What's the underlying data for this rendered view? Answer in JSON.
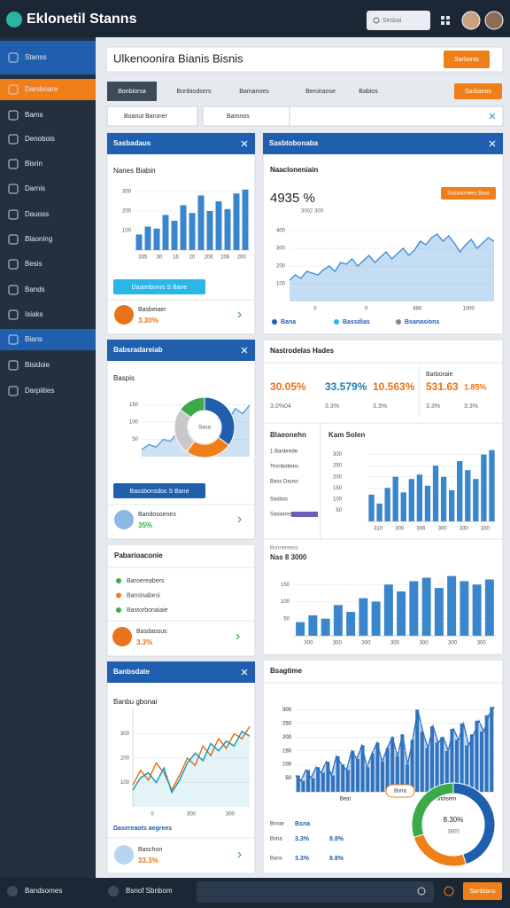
{
  "header": {
    "logo": "Eklonetil Stanns",
    "search": "Sesbai"
  },
  "sidebar": {
    "items": [
      "Stanss",
      "Darsboare",
      "Bams",
      "Denobois",
      "Bisrin",
      "Darnis",
      "Dauoss",
      "Blaoning",
      "Besis",
      "Bands",
      "Isiaks",
      "Bians",
      "Bisidoie",
      "Darpiities"
    ]
  },
  "title_bar": {
    "title": "Ulkenoonira  Bianis  Bisnis",
    "button": "Sarbonis"
  },
  "tabs": {
    "items": [
      "Bonbiorsa",
      "Bonbiodsers",
      "Bamanoes",
      "Beroiraose",
      "Babios"
    ],
    "button": "Sarbanos"
  },
  "filters": {
    "items": [
      "Boanut Baroner",
      "Bamnos"
    ]
  },
  "panel_sales": {
    "title": "Sasbadaus",
    "subtitle": "Nanes Biabin",
    "chart": {
      "type": "bar",
      "color": "#3a86cc",
      "values": [
        80,
        120,
        110,
        180,
        150,
        230,
        190,
        280,
        200,
        250,
        210,
        290,
        310
      ],
      "ylim": [
        0,
        350
      ],
      "yticks": [
        100,
        200,
        300
      ],
      "xlabels": [
        "335",
        "30",
        "16",
        "20",
        "206",
        "206",
        "200"
      ]
    },
    "button": "Dasenbonrs S Bane",
    "stat_label": "Basbeiaer",
    "stat_value": "3.30%"
  },
  "panel_trend": {
    "title": "Sasbtobonaba",
    "subtitle": "Naacloneniain",
    "big_value": "4935 %",
    "small_value": "3002  300",
    "tooltip": "Sasanonees Baar",
    "chart": {
      "type": "area",
      "color": "#3f8fd6",
      "values": [
        120,
        150,
        130,
        170,
        160,
        150,
        180,
        200,
        170,
        220,
        210,
        240,
        200,
        230,
        260,
        220,
        250,
        280,
        240,
        270,
        300,
        260,
        290,
        340,
        320,
        360,
        380,
        340,
        370,
        330,
        280,
        320,
        350,
        300,
        330,
        360,
        340
      ],
      "ylim": [
        0,
        500
      ],
      "yticks": [
        100,
        200,
        300,
        400
      ],
      "xlabels": [
        "0",
        "0",
        "880",
        "1000"
      ]
    },
    "legend": [
      "Bana",
      "Bassdias",
      "Bsanasions"
    ]
  },
  "panel_mix": {
    "title": "Babsradareiab",
    "subtitle": "Baspis",
    "line": {
      "type": "area",
      "color": "#5a9bd6",
      "values": [
        20,
        35,
        28,
        50,
        45,
        70,
        60,
        90,
        80,
        110,
        95,
        120,
        105,
        140,
        125,
        150
      ],
      "ylim": [
        0,
        180
      ],
      "yticks": [
        50,
        100,
        150
      ]
    },
    "donut": {
      "type": "pie",
      "values": [
        35,
        25,
        25,
        15
      ],
      "colors": [
        "#1f5fae",
        "#f07f1a",
        "#c8c8c8",
        "#3daa4a"
      ],
      "center": "Sasa"
    },
    "button": "Bassbonsdos S Bane",
    "stat_label": "Bandosoenes",
    "stat_value": "35%"
  },
  "panel_kpi": {
    "title": "Nastrodelas Hades",
    "side_title": "Barboraie",
    "kpis": [
      {
        "value": "30.05%",
        "label": "3.0%04",
        "color": "#e8731a"
      },
      {
        "value": "33.579%",
        "label": "3.3%",
        "color": "#1f7fb8"
      },
      {
        "value": "10.563%",
        "label": "3.3%",
        "color": "#e8731a"
      },
      {
        "value": "531.63",
        "label": "3.3%",
        "color": "#e8731a"
      },
      {
        "value": "1.85%",
        "label": "3.3%",
        "color": "#e8731a"
      }
    ],
    "list_title": "Blaeonehn",
    "list": [
      "1 Banbrede",
      "Tesnbotiens",
      "Bass Dauss",
      "Sasbos",
      "Sasionns"
    ],
    "chart_title": "Kam Solen",
    "chart": {
      "type": "bar",
      "color": "#3a86cc",
      "values": [
        120,
        80,
        150,
        200,
        130,
        190,
        210,
        160,
        250,
        200,
        140,
        270,
        230,
        190,
        300,
        320
      ],
      "ylim": [
        0,
        350
      ],
      "yticks": [
        50,
        100,
        150,
        200,
        250,
        300
      ],
      "xlabels": [
        "310",
        "300",
        "306",
        "300",
        "330",
        "330"
      ]
    },
    "chart2_caption": "Bsnnenetos",
    "chart2_title": "Nas 8 3000",
    "chart2": {
      "type": "bar",
      "color": "#3a86cc",
      "values": [
        40,
        60,
        50,
        90,
        70,
        110,
        100,
        150,
        130,
        160,
        170,
        140,
        175,
        160,
        150,
        165
      ],
      "ylim": [
        0,
        200
      ],
      "yticks": [
        50,
        100,
        150
      ],
      "xlabels": [
        "300",
        "300",
        "300",
        "300",
        "300",
        "300",
        "300"
      ]
    }
  },
  "panel_list": {
    "title": "Pabarioaconie",
    "items": [
      "Baroereabers",
      "Bansisabesi",
      "Bastorbonaiaie"
    ],
    "stat_label": "Basdaosus",
    "stat_value": "3.3%"
  },
  "panel_lines": {
    "title": "Banbsdate",
    "subtitle": "Banbu gbonai",
    "chart": {
      "type": "line",
      "ylim": [
        0,
        400
      ],
      "yticks": [
        100,
        200,
        300
      ],
      "xlabels": [
        "0",
        "300",
        "300"
      ],
      "series": [
        {
          "color": "#e8731a",
          "values": [
            90,
            150,
            110,
            180,
            140,
            70,
            130,
            200,
            170,
            250,
            210,
            280,
            240,
            300,
            280,
            330
          ]
        },
        {
          "color": "#1f9ab8",
          "values": [
            70,
            120,
            140,
            100,
            160,
            60,
            110,
            180,
            220,
            190,
            260,
            230,
            270,
            250,
            310,
            290
          ]
        }
      ]
    },
    "footer_text": "Dasereaots aegrees",
    "stat_label": "Baschon",
    "stat_value": "33.3%"
  },
  "panel_time": {
    "title": "Bsagtime",
    "chart": {
      "type": "bar",
      "color": "#2f72bf",
      "values": [
        60,
        40,
        80,
        50,
        90,
        70,
        110,
        60,
        130,
        100,
        80,
        150,
        120,
        170,
        90,
        140,
        180,
        110,
        160,
        200,
        130,
        210,
        100,
        190,
        300,
        220,
        160,
        240,
        180,
        200,
        150,
        230,
        190,
        250,
        170,
        210,
        260,
        220,
        280,
        310
      ],
      "ylim": [
        0,
        350
      ],
      "yticks": [
        50,
        100,
        150,
        200,
        250,
        300
      ],
      "xlabels": [
        "Beat",
        "Bsndisem"
      ]
    },
    "tag": "Bsna",
    "rows": [
      {
        "label": "Bnnar",
        "value": "Bsna"
      },
      {
        "label": "Bsna",
        "value": "3.3%",
        "extra": "8.8%"
      },
      {
        "label": "Bans",
        "value": "3.3%",
        "extra": "8.8%"
      }
    ],
    "donut": {
      "type": "pie",
      "values": [
        45,
        25,
        30
      ],
      "colors": [
        "#1f5fae",
        "#f07f1a",
        "#3daa4a"
      ],
      "center": "8.30%",
      "sub": "3800"
    }
  },
  "footer": {
    "label": "Bandsomes",
    "search": "Bsnof Sbnbom",
    "button": "Sanbians"
  }
}
